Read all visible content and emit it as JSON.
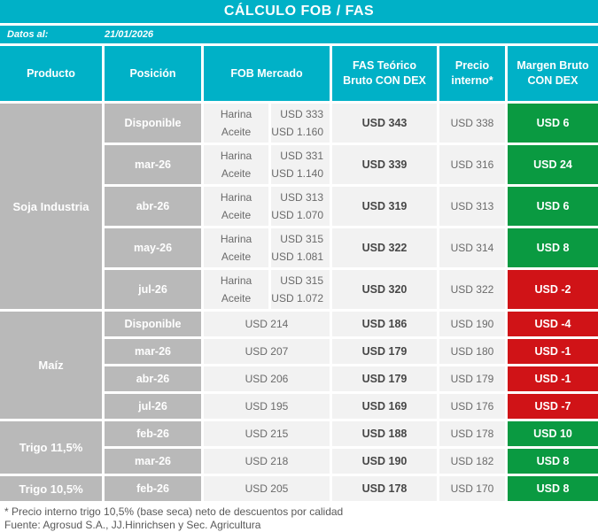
{
  "title": "CÁLCULO FOB / FAS",
  "meta": {
    "label": "Datos al:",
    "date": "21/01/2026"
  },
  "columns": {
    "producto": "Producto",
    "posicion": "Posición",
    "fob": "FOB Mercado",
    "fas": "FAS Teórico\nBruto CON DEX",
    "precio": "Precio\ninterno*",
    "margen": "Margen Bruto\nCON DEX"
  },
  "groups": [
    {
      "producto": "Soja Industria",
      "rows": [
        {
          "posicion": "Disponible",
          "fob": [
            {
              "label": "Harina",
              "value": "USD 333"
            },
            {
              "label": "Aceite",
              "value": "USD 1.160"
            }
          ],
          "fas": "USD 343",
          "precio": "USD 338",
          "margen": "USD 6",
          "margen_type": "positive"
        },
        {
          "posicion": "mar-26",
          "fob": [
            {
              "label": "Harina",
              "value": "USD 331"
            },
            {
              "label": "Aceite",
              "value": "USD 1.140"
            }
          ],
          "fas": "USD 339",
          "precio": "USD 316",
          "margen": "USD 24",
          "margen_type": "positive"
        },
        {
          "posicion": "abr-26",
          "fob": [
            {
              "label": "Harina",
              "value": "USD 313"
            },
            {
              "label": "Aceite",
              "value": "USD 1.070"
            }
          ],
          "fas": "USD 319",
          "precio": "USD 313",
          "margen": "USD 6",
          "margen_type": "positive"
        },
        {
          "posicion": "may-26",
          "fob": [
            {
              "label": "Harina",
              "value": "USD 315"
            },
            {
              "label": "Aceite",
              "value": "USD 1.081"
            }
          ],
          "fas": "USD 322",
          "precio": "USD 314",
          "margen": "USD 8",
          "margen_type": "positive"
        },
        {
          "posicion": "jul-26",
          "fob": [
            {
              "label": "Harina",
              "value": "USD 315"
            },
            {
              "label": "Aceite",
              "value": "USD 1.072"
            }
          ],
          "fas": "USD 320",
          "precio": "USD 322",
          "margen": "USD -2",
          "margen_type": "negative"
        }
      ]
    },
    {
      "producto": "Maíz",
      "rows": [
        {
          "posicion": "Disponible",
          "fob_single": "USD 214",
          "fas": "USD 186",
          "precio": "USD 190",
          "margen": "USD -4",
          "margen_type": "negative"
        },
        {
          "posicion": "mar-26",
          "fob_single": "USD 207",
          "fas": "USD 179",
          "precio": "USD 180",
          "margen": "USD -1",
          "margen_type": "negative"
        },
        {
          "posicion": "abr-26",
          "fob_single": "USD 206",
          "fas": "USD 179",
          "precio": "USD 179",
          "margen": "USD -1",
          "margen_type": "negative"
        },
        {
          "posicion": "jul-26",
          "fob_single": "USD 195",
          "fas": "USD 169",
          "precio": "USD 176",
          "margen": "USD -7",
          "margen_type": "negative"
        }
      ]
    },
    {
      "producto": "Trigo 11,5%",
      "rows": [
        {
          "posicion": "feb-26",
          "fob_single": "USD 215",
          "fas": "USD 188",
          "precio": "USD 178",
          "margen": "USD 10",
          "margen_type": "positive"
        },
        {
          "posicion": "mar-26",
          "fob_single": "USD 218",
          "fas": "USD 190",
          "precio": "USD 182",
          "margen": "USD 8",
          "margen_type": "positive"
        }
      ]
    },
    {
      "producto": "Trigo 10,5%",
      "rows": [
        {
          "posicion": "feb-26",
          "fob_single": "USD 205",
          "fas": "USD 178",
          "precio": "USD 170",
          "margen": "USD 8",
          "margen_type": "positive"
        }
      ]
    }
  ],
  "footnotes": {
    "note": "* Precio interno trigo 10,5% (base seca) neto de descuentos por calidad",
    "source": "Fuente: Agrosud S.A., JJ.Hinrichsen y Sec. Agricultura"
  },
  "colors": {
    "accent_cyan": "#00b1c7",
    "gray_cell": "#b9b9b9",
    "light_cell": "#f2f2f2",
    "positive_green": "#0a9a41",
    "negative_red": "#d01317",
    "text_dark": "#474747",
    "text_medium": "#6a6a6a"
  },
  "chart_data": {
    "type": "table",
    "title": "CÁLCULO FOB / FAS",
    "columns": [
      "Producto",
      "Posición",
      "FOB Mercado",
      "FAS Teórico Bruto CON DEX",
      "Precio interno*",
      "Margen Bruto CON DEX"
    ],
    "rows": [
      [
        "Soja Industria",
        "Disponible",
        "Harina USD 333 / Aceite USD 1.160",
        "USD 343",
        "USD 338",
        "USD 6"
      ],
      [
        "Soja Industria",
        "mar-26",
        "Harina USD 331 / Aceite USD 1.140",
        "USD 339",
        "USD 316",
        "USD 24"
      ],
      [
        "Soja Industria",
        "abr-26",
        "Harina USD 313 / Aceite USD 1.070",
        "USD 319",
        "USD 313",
        "USD 6"
      ],
      [
        "Soja Industria",
        "may-26",
        "Harina USD 315 / Aceite USD 1.081",
        "USD 322",
        "USD 314",
        "USD 8"
      ],
      [
        "Soja Industria",
        "jul-26",
        "Harina USD 315 / Aceite USD 1.072",
        "USD 320",
        "USD 322",
        "USD -2"
      ],
      [
        "Maíz",
        "Disponible",
        "USD 214",
        "USD 186",
        "USD 190",
        "USD -4"
      ],
      [
        "Maíz",
        "mar-26",
        "USD 207",
        "USD 179",
        "USD 180",
        "USD -1"
      ],
      [
        "Maíz",
        "abr-26",
        "USD 206",
        "USD 179",
        "USD 179",
        "USD -1"
      ],
      [
        "Maíz",
        "jul-26",
        "USD 195",
        "USD 169",
        "USD 176",
        "USD -7"
      ],
      [
        "Trigo 11,5%",
        "feb-26",
        "USD 215",
        "USD 188",
        "USD 178",
        "USD 10"
      ],
      [
        "Trigo 11,5%",
        "mar-26",
        "USD 218",
        "USD 190",
        "USD 182",
        "USD 8"
      ],
      [
        "Trigo 10,5%",
        "feb-26",
        "USD 205",
        "USD 178",
        "USD 170",
        "USD 8"
      ]
    ]
  }
}
